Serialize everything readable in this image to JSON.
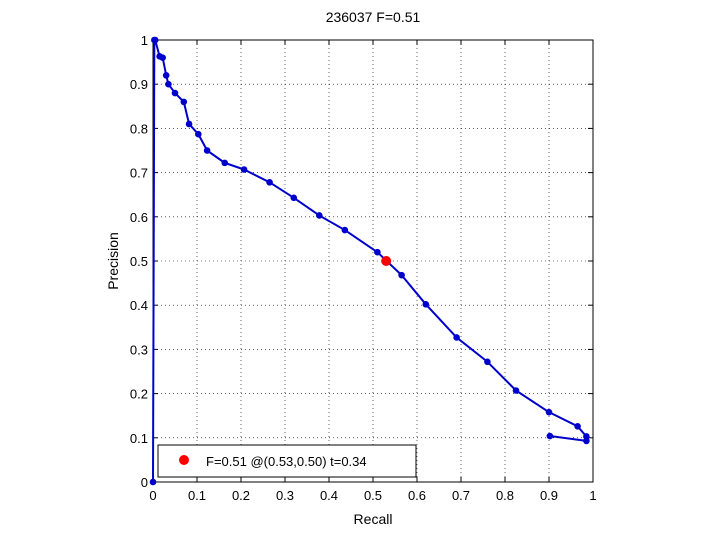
{
  "chart_data": {
    "type": "line",
    "title": "236037 F=0.51",
    "xlabel": "Recall",
    "ylabel": "Precision",
    "xlim": [
      0,
      1
    ],
    "ylim": [
      0,
      1
    ],
    "xticks": [
      0,
      0.1,
      0.2,
      0.3,
      0.4,
      0.5,
      0.6,
      0.7,
      0.8,
      0.9,
      1
    ],
    "yticks": [
      0,
      0.1,
      0.2,
      0.3,
      0.4,
      0.5,
      0.6,
      0.7,
      0.8,
      0.9,
      1
    ],
    "xtick_labels": [
      "0",
      "0.1",
      "0.2",
      "0.3",
      "0.4",
      "0.5",
      "0.6",
      "0.7",
      "0.8",
      "0.9",
      "1"
    ],
    "ytick_labels": [
      "0",
      "0.1",
      "0.2",
      "0.3",
      "0.4",
      "0.5",
      "0.6",
      "0.7",
      "0.8",
      "0.9",
      "1"
    ],
    "grid": true,
    "series": [
      {
        "color": "#0000cc",
        "x": [
          0,
          0.003,
          0.005,
          0.015,
          0.022,
          0.03,
          0.035,
          0.05,
          0.07,
          0.082,
          0.103,
          0.123,
          0.163,
          0.207,
          0.265,
          0.32,
          0.378,
          0.436,
          0.51,
          0.565,
          0.62,
          0.69,
          0.76,
          0.825,
          0.9,
          0.965,
          0.985,
          0.985,
          0.902
        ],
        "y": [
          0,
          1.0,
          1.0,
          0.963,
          0.96,
          0.92,
          0.9,
          0.88,
          0.86,
          0.81,
          0.787,
          0.75,
          0.722,
          0.707,
          0.678,
          0.643,
          0.603,
          0.57,
          0.52,
          0.468,
          0.402,
          0.327,
          0.272,
          0.207,
          0.158,
          0.126,
          0.103,
          0.093,
          0.104
        ]
      }
    ],
    "highlight_point": {
      "x": 0.53,
      "y": 0.5,
      "color": "#ff0000"
    },
    "legend": {
      "placement": "bottom-left",
      "label": "F=0.51 @(0.53,0.50) t=0.34"
    }
  }
}
